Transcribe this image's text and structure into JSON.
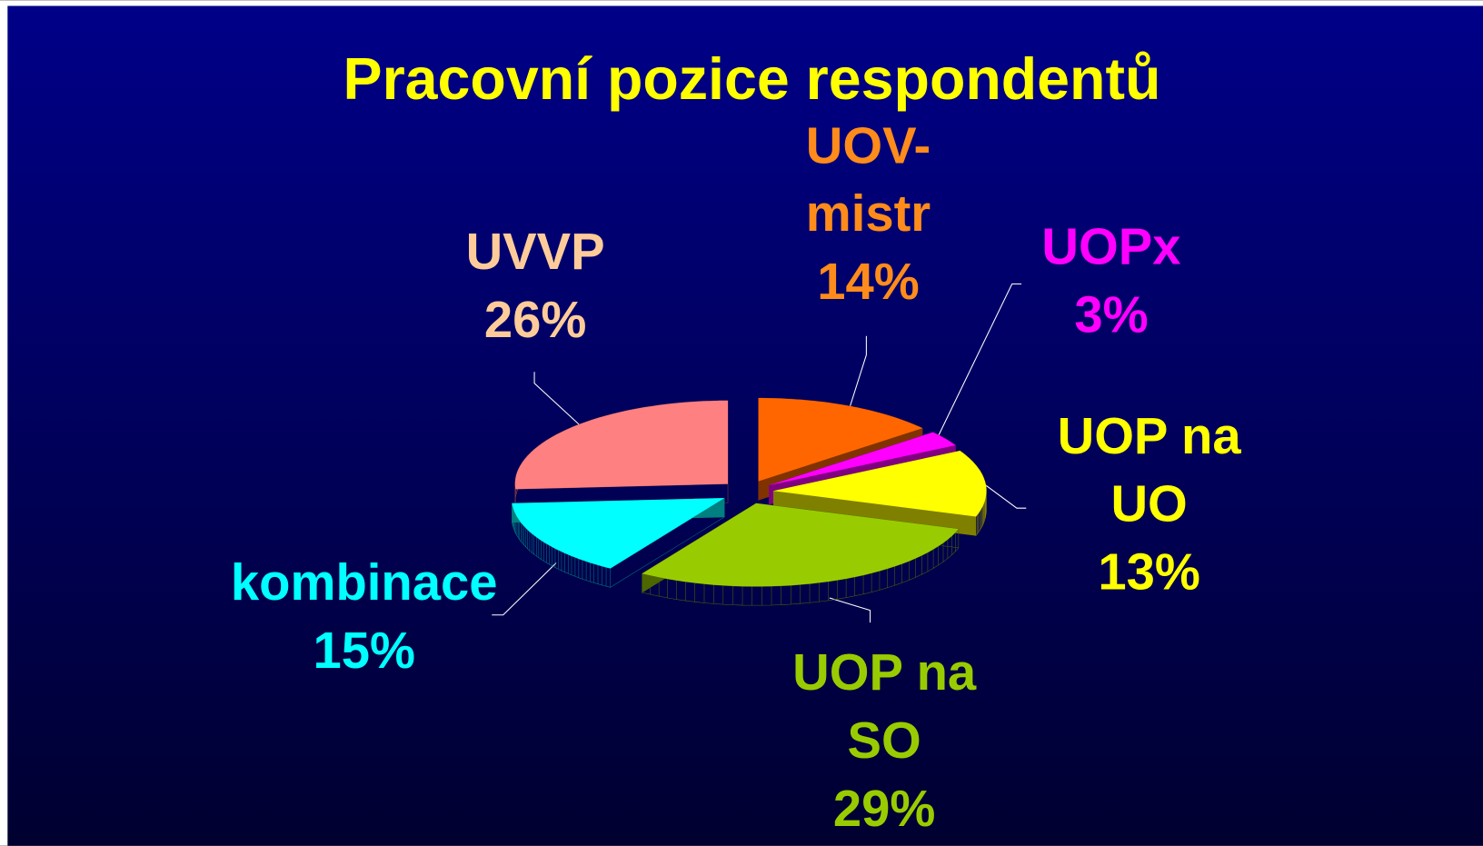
{
  "chart_data": {
    "type": "pie3d",
    "title": "Pracovní pozice respondentů",
    "categories": [
      "UOV-mistr",
      "UOPx",
      "UOP na UO",
      "UOP na SO",
      "kombinace",
      "UVVP"
    ],
    "values": [
      14,
      3,
      13,
      29,
      15,
      26
    ],
    "value_labels": [
      "14%",
      "3%",
      "13%",
      "29%",
      "15%",
      "26%"
    ],
    "colors": [
      "#ff6600",
      "#ff00ff",
      "#ffff00",
      "#99cc00",
      "#00ffff",
      "#ff8080"
    ],
    "label_colors": [
      "#ff8c1a",
      "#ff00ff",
      "#ffff00",
      "#99cc00",
      "#00ffff",
      "#ffcc99"
    ]
  }
}
